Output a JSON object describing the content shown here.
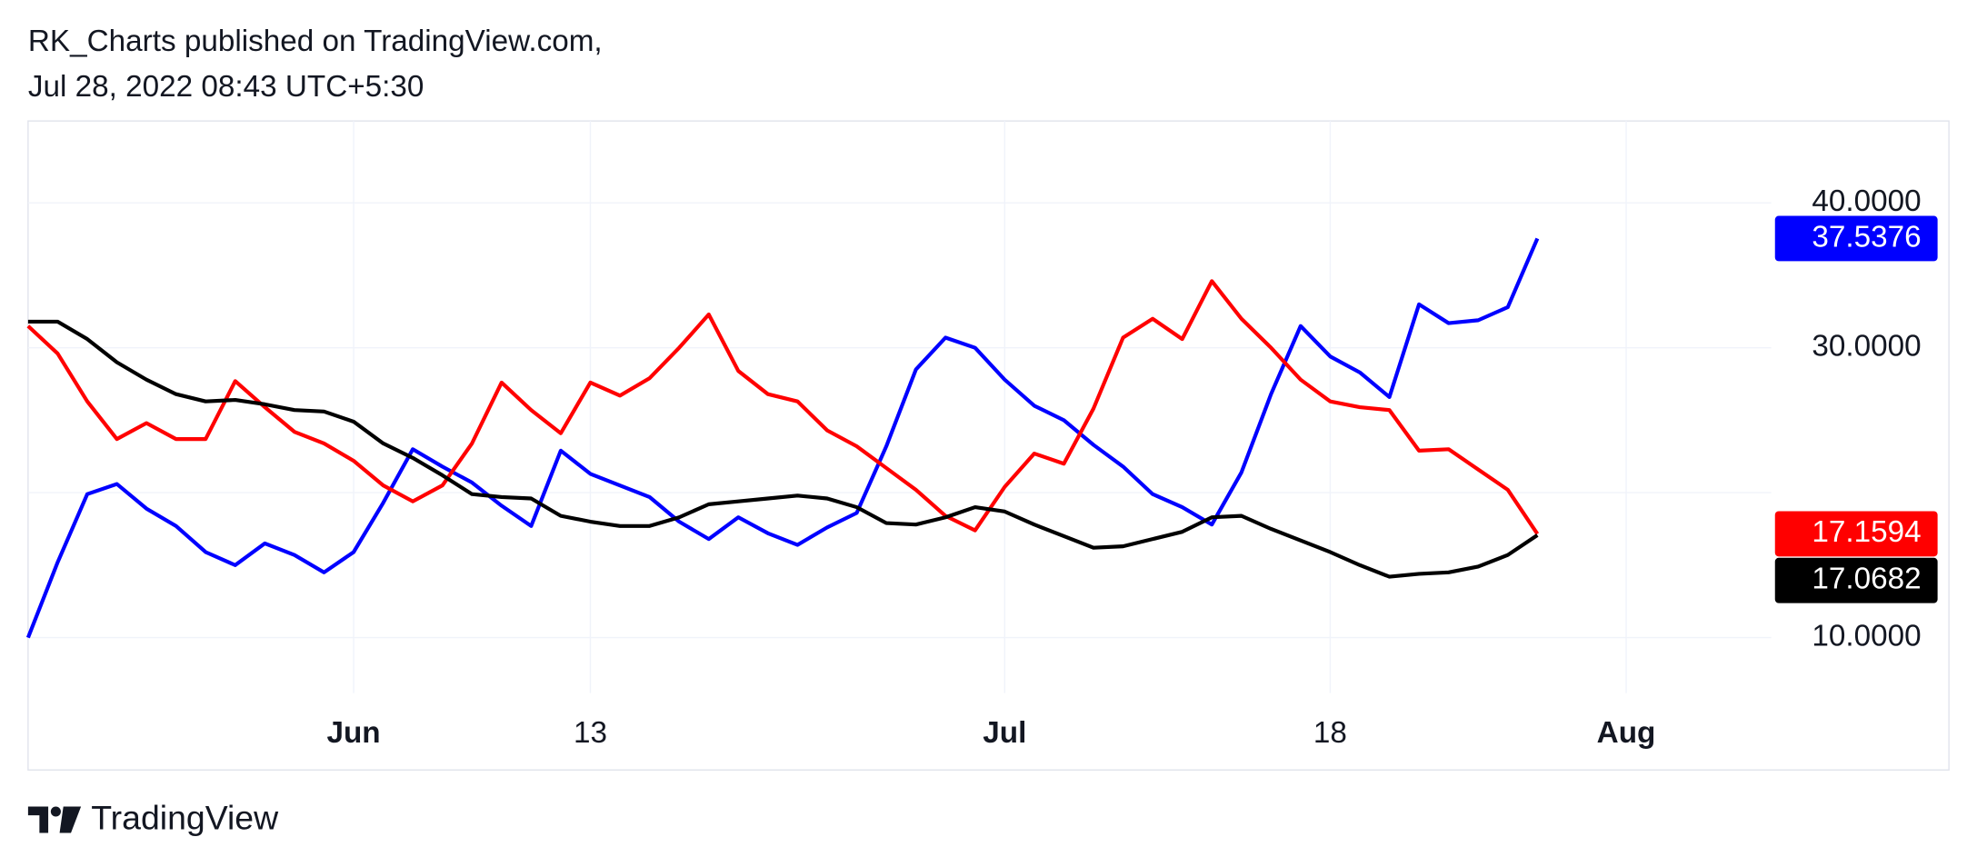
{
  "header": {
    "publisher": "RK_Charts published on TradingView.com,",
    "timestamp": "Jul 28, 2022 08:43 UTC+5:30"
  },
  "footer": {
    "brand": "TradingView"
  },
  "chart_data": {
    "type": "line",
    "categories": [
      null,
      null,
      null,
      null,
      null,
      null,
      null,
      null,
      null,
      null,
      null,
      "Jun",
      null,
      null,
      null,
      null,
      null,
      null,
      null,
      "13",
      null,
      null,
      null,
      null,
      null,
      null,
      null,
      null,
      null,
      null,
      null,
      null,
      null,
      "Jul",
      null,
      null,
      null,
      null,
      null,
      null,
      null,
      null,
      null,
      null,
      "18",
      null,
      null,
      null,
      null,
      null,
      null,
      null,
      null,
      null,
      "Aug"
    ],
    "series": [
      {
        "color": "#0000ff",
        "values": [
          10.0,
          15.2,
          19.9,
          20.6,
          18.9,
          17.7,
          15.9,
          15.0,
          16.5,
          15.7,
          14.5,
          15.9,
          19.3,
          23.0,
          21.8,
          20.7,
          19.1,
          17.7,
          22.9,
          21.3,
          20.5,
          19.7,
          18.0,
          16.8,
          18.3,
          17.2,
          16.4,
          17.6,
          18.6,
          23.2,
          28.5,
          30.7,
          30.0,
          27.8,
          26.0,
          25.0,
          23.3,
          21.8,
          19.9,
          19.0,
          17.8,
          21.4,
          26.8,
          31.5,
          29.4,
          28.3,
          26.6,
          33.0,
          31.7,
          31.9,
          32.8,
          37.5376,
          null,
          null,
          null
        ]
      },
      {
        "color": "#ff0000",
        "values": [
          31.5,
          29.6,
          26.3,
          23.7,
          24.8,
          23.7,
          23.7,
          27.7,
          25.9,
          24.2,
          23.4,
          22.2,
          20.5,
          19.4,
          20.5,
          23.4,
          27.6,
          25.7,
          24.1,
          27.6,
          26.7,
          27.9,
          30.0,
          32.3,
          28.4,
          26.8,
          26.3,
          24.3,
          23.2,
          21.7,
          20.2,
          18.4,
          17.4,
          20.4,
          22.7,
          22.0,
          25.8,
          30.7,
          32.0,
          30.6,
          34.6,
          32.0,
          30.0,
          27.8,
          26.3,
          25.9,
          25.7,
          22.9,
          23.0,
          21.6,
          20.2,
          17.1594,
          null,
          null,
          null
        ]
      },
      {
        "color": "#000000",
        "values": [
          31.8,
          31.8,
          30.6,
          29.0,
          27.8,
          26.8,
          26.3,
          26.4,
          26.1,
          25.7,
          25.6,
          24.9,
          23.4,
          22.4,
          21.2,
          19.9,
          19.7,
          19.6,
          18.4,
          18.0,
          17.7,
          17.7,
          18.3,
          19.2,
          19.4,
          19.6,
          19.8,
          19.6,
          19.0,
          17.9,
          17.8,
          18.3,
          19.0,
          18.7,
          17.8,
          17.0,
          16.2,
          16.3,
          16.8,
          17.3,
          18.3,
          18.4,
          17.5,
          16.7,
          15.9,
          15.0,
          14.2,
          14.4,
          14.5,
          14.9,
          15.7,
          17.0682,
          null,
          null,
          null
        ]
      }
    ],
    "ylim": [
      6.17,
      45.65
    ],
    "yticks": [
      {
        "value": 10,
        "label": "10.0000"
      },
      {
        "value": 20,
        "label": null
      },
      {
        "value": 30,
        "label": "30.0000"
      },
      {
        "value": 40,
        "label": "40.0000"
      }
    ],
    "grid": true
  }
}
